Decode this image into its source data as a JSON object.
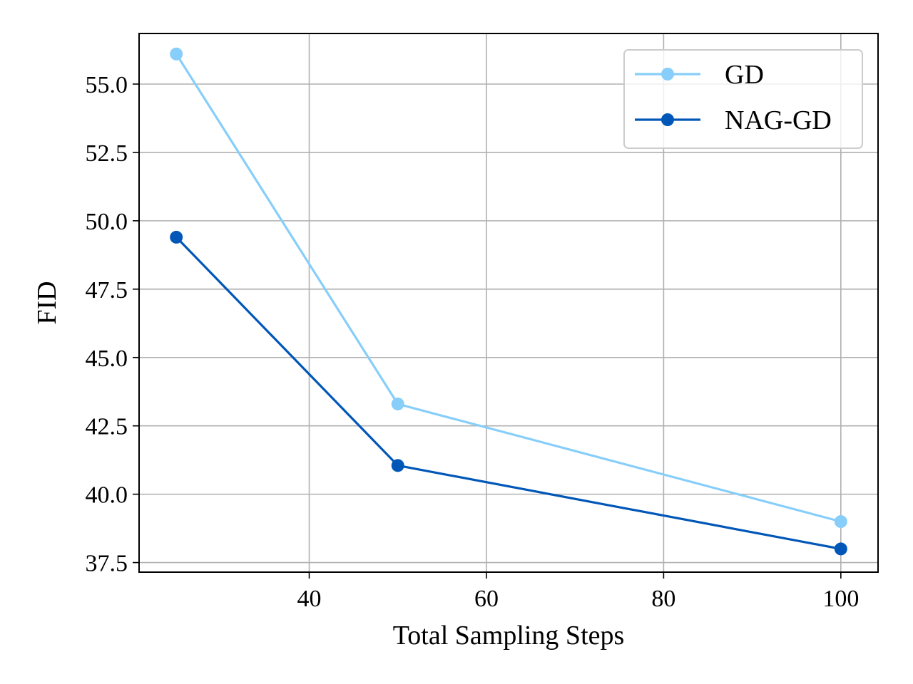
{
  "chart_data": {
    "type": "line",
    "title": "",
    "xlabel": "Total Sampling Steps",
    "ylabel": "FID",
    "xlim": [
      20.8,
      104.2
    ],
    "ylim": [
      37.15,
      56.85
    ],
    "xticks": [
      40,
      60,
      80,
      100
    ],
    "xtick_labels": [
      "40",
      "60",
      "80",
      "100"
    ],
    "yticks": [
      37.5,
      40.0,
      42.5,
      45.0,
      47.5,
      50.0,
      52.5,
      55.0
    ],
    "ytick_labels": [
      "37.5",
      "40.0",
      "42.5",
      "45.0",
      "47.5",
      "50.0",
      "52.5",
      "55.0"
    ],
    "grid": true,
    "legend_position": "top-right",
    "x": [
      25,
      50,
      100
    ],
    "series": [
      {
        "name": "GD",
        "color": "#87CEFA",
        "values": [
          56.1,
          43.3,
          39.0
        ]
      },
      {
        "name": "NAG-GD",
        "color": "#0057B8",
        "values": [
          49.4,
          41.05,
          38.0
        ]
      }
    ]
  }
}
